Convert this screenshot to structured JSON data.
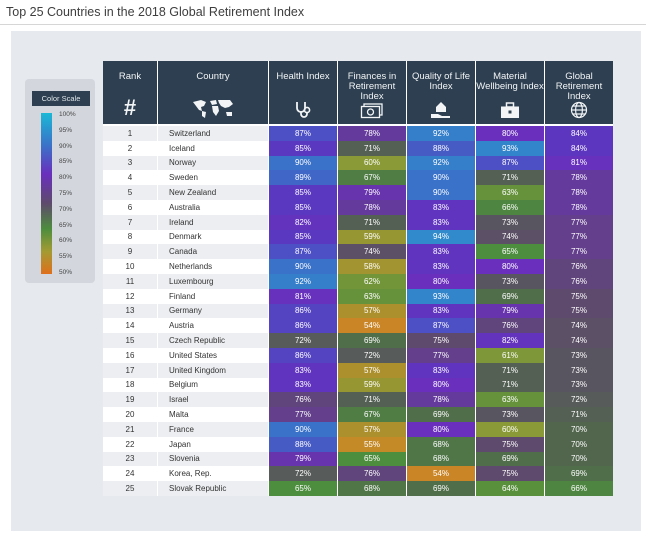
{
  "title": "Top 25 Countries in the 2018 Global Retirement Index",
  "color_scale": {
    "title": "Color Scale",
    "labels": [
      "100%",
      "95%",
      "90%",
      "85%",
      "80%",
      "75%",
      "70%",
      "65%",
      "60%",
      "55%",
      "50%"
    ]
  },
  "columns": [
    {
      "label": "Rank",
      "icon": "hash-symbol"
    },
    {
      "label": "Country",
      "icon": "world-map-icon"
    },
    {
      "label": "Health Index",
      "icon": "stethoscope-icon"
    },
    {
      "label": "Finances in Retirement Index",
      "icon": "money-icon"
    },
    {
      "label": "Quality of Life Index",
      "icon": "house-hand-icon"
    },
    {
      "label": "Material Wellbeing Index",
      "icon": "briefcase-icon"
    },
    {
      "label": "Global Retirement Index",
      "icon": "globe-icon"
    }
  ],
  "chart_data": {
    "type": "table",
    "title": "Top 25 Countries in the 2018 Global Retirement Index",
    "columns": [
      "Rank",
      "Country",
      "Health Index",
      "Finances in Retirement Index",
      "Quality of Life Index",
      "Material Wellbeing Index",
      "Global Retirement Index"
    ],
    "rows": [
      {
        "rank": "1",
        "country": "Switzerland",
        "health": "87%",
        "finances": "78%",
        "quality": "92%",
        "material": "80%",
        "global": "84%"
      },
      {
        "rank": "2",
        "country": "Iceland",
        "health": "85%",
        "finances": "71%",
        "quality": "88%",
        "material": "93%",
        "global": "84%"
      },
      {
        "rank": "3",
        "country": "Norway",
        "health": "90%",
        "finances": "60%",
        "quality": "92%",
        "material": "87%",
        "global": "81%"
      },
      {
        "rank": "4",
        "country": "Sweden",
        "health": "89%",
        "finances": "67%",
        "quality": "90%",
        "material": "71%",
        "global": "78%"
      },
      {
        "rank": "5",
        "country": "New Zealand",
        "health": "85%",
        "finances": "79%",
        "quality": "90%",
        "material": "63%",
        "global": "78%"
      },
      {
        "rank": "6",
        "country": "Australia",
        "health": "85%",
        "finances": "78%",
        "quality": "83%",
        "material": "66%",
        "global": "78%"
      },
      {
        "rank": "7",
        "country": "Ireland",
        "health": "82%",
        "finances": "71%",
        "quality": "83%",
        "material": "73%",
        "global": "77%"
      },
      {
        "rank": "8",
        "country": "Denmark",
        "health": "85%",
        "finances": "59%",
        "quality": "94%",
        "material": "74%",
        "global": "77%"
      },
      {
        "rank": "9",
        "country": "Canada",
        "health": "87%",
        "finances": "74%",
        "quality": "83%",
        "material": "65%",
        "global": "77%"
      },
      {
        "rank": "10",
        "country": "Netherlands",
        "health": "90%",
        "finances": "58%",
        "quality": "83%",
        "material": "80%",
        "global": "76%"
      },
      {
        "rank": "11",
        "country": "Luxembourg",
        "health": "92%",
        "finances": "62%",
        "quality": "80%",
        "material": "73%",
        "global": "76%"
      },
      {
        "rank": "12",
        "country": "Finland",
        "health": "81%",
        "finances": "63%",
        "quality": "93%",
        "material": "69%",
        "global": "75%"
      },
      {
        "rank": "13",
        "country": "Germany",
        "health": "86%",
        "finances": "57%",
        "quality": "83%",
        "material": "79%",
        "global": "75%"
      },
      {
        "rank": "14",
        "country": "Austria",
        "health": "86%",
        "finances": "54%",
        "quality": "87%",
        "material": "76%",
        "global": "74%"
      },
      {
        "rank": "15",
        "country": "Czech Republic",
        "health": "72%",
        "finances": "69%",
        "quality": "75%",
        "material": "82%",
        "global": "74%"
      },
      {
        "rank": "16",
        "country": "United States",
        "health": "86%",
        "finances": "72%",
        "quality": "77%",
        "material": "61%",
        "global": "73%"
      },
      {
        "rank": "17",
        "country": "United Kingdom",
        "health": "83%",
        "finances": "57%",
        "quality": "83%",
        "material": "71%",
        "global": "73%"
      },
      {
        "rank": "18",
        "country": "Belgium",
        "health": "83%",
        "finances": "59%",
        "quality": "80%",
        "material": "71%",
        "global": "73%"
      },
      {
        "rank": "19",
        "country": "Israel",
        "health": "76%",
        "finances": "71%",
        "quality": "78%",
        "material": "63%",
        "global": "72%"
      },
      {
        "rank": "20",
        "country": "Malta",
        "health": "77%",
        "finances": "67%",
        "quality": "69%",
        "material": "73%",
        "global": "71%"
      },
      {
        "rank": "21",
        "country": "France",
        "health": "90%",
        "finances": "57%",
        "quality": "80%",
        "material": "60%",
        "global": "70%"
      },
      {
        "rank": "22",
        "country": "Japan",
        "health": "88%",
        "finances": "55%",
        "quality": "68%",
        "material": "75%",
        "global": "70%"
      },
      {
        "rank": "23",
        "country": "Slovenia",
        "health": "79%",
        "finances": "65%",
        "quality": "68%",
        "material": "69%",
        "global": "70%"
      },
      {
        "rank": "24",
        "country": "Korea, Rep.",
        "health": "72%",
        "finances": "76%",
        "quality": "54%",
        "material": "75%",
        "global": "69%"
      },
      {
        "rank": "25",
        "country": "Slovak Republic",
        "health": "65%",
        "finances": "68%",
        "quality": "69%",
        "material": "64%",
        "global": "66%"
      }
    ]
  },
  "colors": {
    "header_bg": "#2d3f50",
    "scale_stops": [
      {
        "pct": 100,
        "hex": "#1ab8d6"
      },
      {
        "pct": 95,
        "hex": "#2d90cc"
      },
      {
        "pct": 90,
        "hex": "#3a72c9"
      },
      {
        "pct": 85,
        "hex": "#5a38c0"
      },
      {
        "pct": 80,
        "hex": "#6a2fbd"
      },
      {
        "pct": 75,
        "hex": "#5e4a6c"
      },
      {
        "pct": 70,
        "hex": "#52664e"
      },
      {
        "pct": 65,
        "hex": "#4d8d3e"
      },
      {
        "pct": 60,
        "hex": "#8a9a36"
      },
      {
        "pct": 55,
        "hex": "#c58a28"
      },
      {
        "pct": 50,
        "hex": "#e06f1c"
      }
    ]
  }
}
